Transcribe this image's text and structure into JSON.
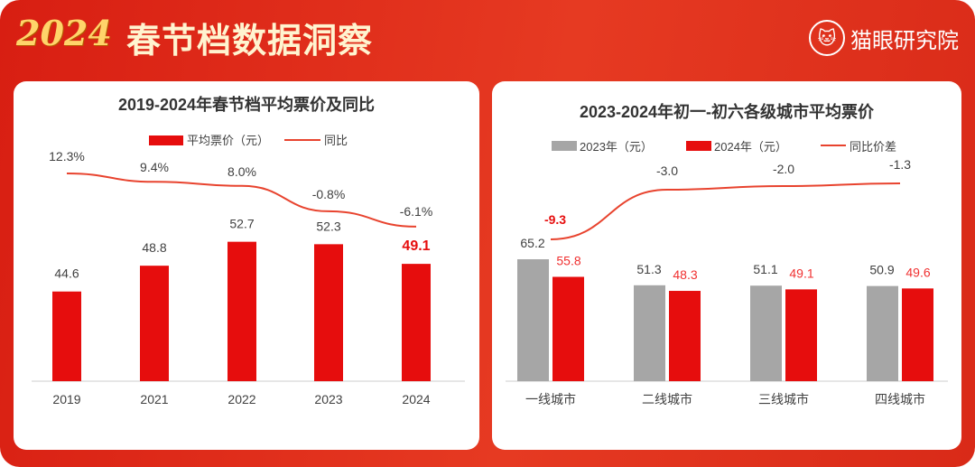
{
  "header": {
    "year_logo": "2024",
    "title": "春节档数据洞察",
    "brand": "猫眼研究院",
    "brand_icon": "cat-icon"
  },
  "colors": {
    "red": "#e60d0d",
    "gray": "#a6a6a6",
    "line": "#e8432e"
  },
  "chart_data": [
    {
      "type": "bar+line",
      "title": "2019-2024年春节档平均票价及同比",
      "categories": [
        "2019",
        "2021",
        "2022",
        "2023",
        "2024"
      ],
      "series": [
        {
          "name": "平均票价（元）",
          "type": "bar",
          "values": [
            44.6,
            48.8,
            52.7,
            52.3,
            49.1
          ]
        },
        {
          "name": "同比",
          "type": "line",
          "values": [
            12.3,
            9.4,
            8.0,
            -0.8,
            -6.1
          ],
          "labels": [
            "12.3%",
            "9.4%",
            "8.0%",
            "-0.8%",
            "-6.1%"
          ]
        }
      ],
      "legend": "top"
    },
    {
      "type": "bar+line",
      "title": "2023-2024年初一-初六各级城市平均票价",
      "categories": [
        "一线城市",
        "二线城市",
        "三线城市",
        "四线城市"
      ],
      "series": [
        {
          "name": "2023年（元）",
          "type": "bar",
          "values": [
            65.2,
            51.3,
            51.1,
            50.9
          ]
        },
        {
          "name": "2024年（元）",
          "type": "bar",
          "values": [
            55.8,
            48.3,
            49.1,
            49.6
          ]
        },
        {
          "name": "同比价差",
          "type": "line",
          "values": [
            -9.3,
            -3.0,
            -2.0,
            -1.3
          ]
        }
      ],
      "legend": "top"
    }
  ]
}
